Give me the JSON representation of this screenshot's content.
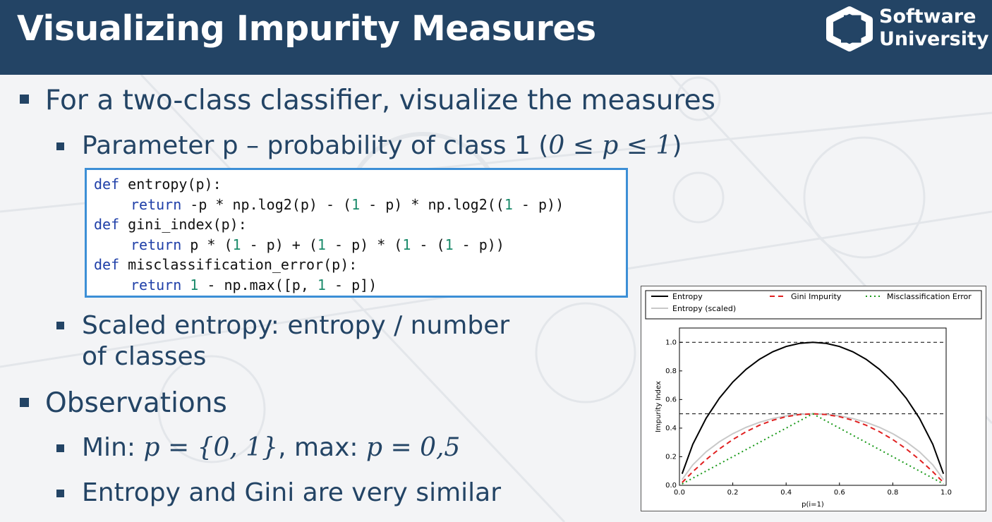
{
  "slide": {
    "title": "Visualizing Impurity Measures",
    "logo_line1": "Software",
    "logo_line2": "University"
  },
  "bullets": {
    "b1": "For a two-class classifier, visualize the measures",
    "b1a_text": "Parameter p – probability of class 1 (",
    "b1a_math": "0 ≤ p ≤ 1",
    "b1a_close": ")",
    "b1b_line1": "Scaled entropy: entropy / number",
    "b1b_line2": "of classes",
    "b2": "Observations",
    "b2a_min": "Min: ",
    "b2a_minmath": "p = {0, 1}",
    "b2a_max": ", max: ",
    "b2a_maxmath": "p = 0,5",
    "b2b": "Entropy and Gini are very similar"
  },
  "code": {
    "line1_kw": "def",
    "line1_rest": " entropy(p):",
    "line2_kw": "return",
    "line2_a": " -p * np.log2(p) - (",
    "line2_n1": "1",
    "line2_b": " - p) * np.log2((",
    "line2_n2": "1",
    "line2_c": " - p))",
    "line3_kw": "def",
    "line3_rest": " gini_index(p):",
    "line4_kw": "return",
    "line4_a": " p * (",
    "line4_n1": "1",
    "line4_b": " - p) + (",
    "line4_n2": "1",
    "line4_c": " - p) * (",
    "line4_n3": "1",
    "line4_d": " - (",
    "line4_n4": "1",
    "line4_e": " - p))",
    "line5_kw": "def",
    "line5_rest": " misclassification_error(p):",
    "line6_kw": "return",
    "line6_n1": " 1",
    "line6_a": " - np.max([p, ",
    "line6_n2": "1",
    "line6_b": " - p])"
  },
  "chart_data": {
    "type": "line",
    "xlabel": "p(i=1)",
    "ylabel": "Impurity Index",
    "xlim": [
      0,
      1
    ],
    "ylim": [
      0,
      1.1
    ],
    "x_ticks": [
      "0.0",
      "0.2",
      "0.4",
      "0.6",
      "0.8",
      "1.0"
    ],
    "y_ticks": [
      "0.0",
      "0.2",
      "0.4",
      "0.6",
      "0.8",
      "1.0"
    ],
    "hlines": [
      0.5,
      1.0
    ],
    "legend_position": "top (above plot), 3 columns",
    "series": [
      {
        "name": "Entropy",
        "color": "#000000",
        "style": "solid",
        "formula": "entropy"
      },
      {
        "name": "Gini Impurity",
        "color": "#e02020",
        "style": "dashed",
        "formula": "gini"
      },
      {
        "name": "Misclassification Error",
        "color": "#1a9a1a",
        "style": "dotted",
        "formula": "error"
      },
      {
        "name": "Entropy (scaled)",
        "color": "#c8c8c8",
        "style": "solid",
        "formula": "scaled_entropy"
      }
    ],
    "x": [
      0.01,
      0.05,
      0.1,
      0.15,
      0.2,
      0.25,
      0.3,
      0.35,
      0.4,
      0.45,
      0.5,
      0.55,
      0.6,
      0.65,
      0.7,
      0.75,
      0.8,
      0.85,
      0.9,
      0.95,
      0.99
    ]
  },
  "colors": {
    "header": "#234465",
    "text": "#234465",
    "code_border": "#3c8fd6"
  }
}
